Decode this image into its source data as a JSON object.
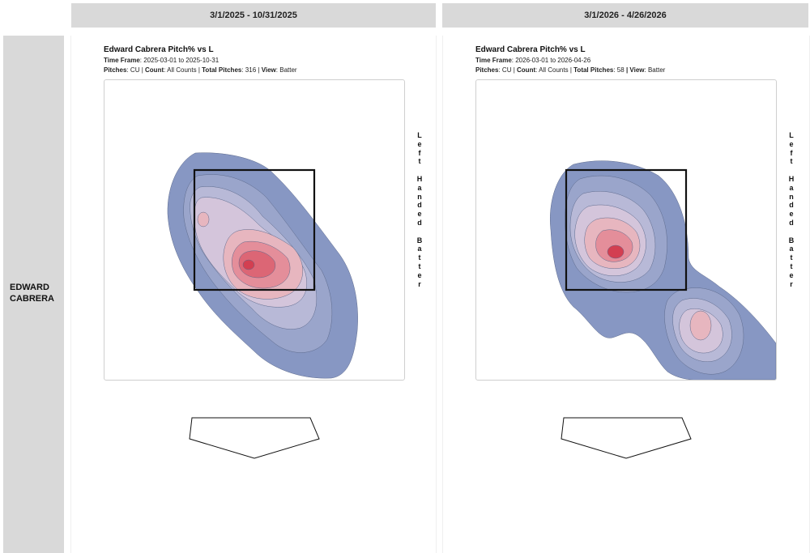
{
  "row_header": {
    "label": "EDWARD CABRERA"
  },
  "chart_data": [
    {
      "type": "heatmap",
      "column_header": "3/1/2025 - 10/31/2025",
      "title": "Edward Cabrera Pitch% vs L",
      "time_frame_label": "Time Frame",
      "time_frame": "2025-03-01 to 2025-10-31",
      "pitches_label": "Pitches",
      "pitches": "CU",
      "count_label": "Count",
      "count": "All Counts",
      "total_pitches_label": "Total Pitches",
      "total_pitches": "316",
      "view_label": "View",
      "view": "Batter",
      "side_label": "Left Handed Batter",
      "grid": false,
      "colors": {
        "low": "#8797c3",
        "high": "#d33f51",
        "zone": "#111111"
      },
      "density_peaks": [
        {
          "x": 0.14,
          "y": 2.43,
          "level": "max"
        },
        {
          "x": -0.66,
          "y": 3.23,
          "level": "secondary"
        }
      ]
    },
    {
      "type": "heatmap",
      "column_header": "3/1/2026 - 4/26/2026",
      "title": "Edward Cabrera Pitch% vs L",
      "time_frame_label": "Time Frame",
      "time_frame": "2026-03-01 to 2026-04-26",
      "pitches_label": "Pitches",
      "pitches": "CU",
      "count_label": "Count",
      "count": "All Counts",
      "total_pitches_label": "Total Pitches",
      "total_pitches": "58",
      "view_label": "View",
      "view": "Batter",
      "side_label": "Left Handed Batter",
      "grid": false,
      "colors": {
        "low": "#8797c3",
        "high": "#d33f51",
        "zone": "#111111"
      },
      "density_peaks": [
        {
          "x": -0.26,
          "y": 2.7,
          "level": "max"
        },
        {
          "x": 1.46,
          "y": 1.43,
          "level": "secondary"
        }
      ]
    }
  ]
}
